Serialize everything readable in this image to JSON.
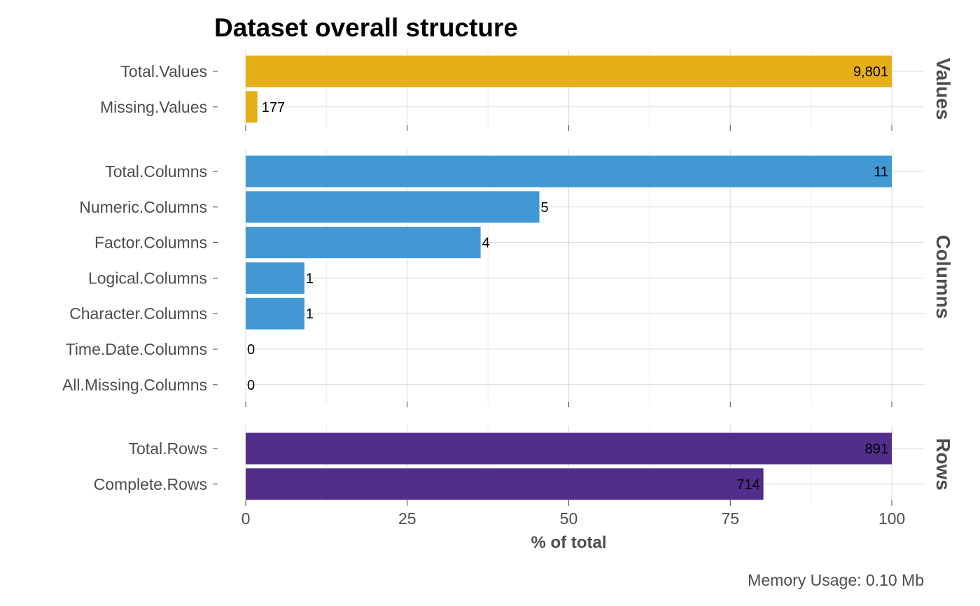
{
  "chart_data": {
    "type": "bar",
    "orientation": "horizontal",
    "title": "Dataset overall structure",
    "xlabel": "% of total",
    "ylabel": "",
    "xlim": [
      0,
      100
    ],
    "x_ticks": [
      "0",
      "25",
      "50",
      "75",
      "100"
    ],
    "grid": true,
    "legend": "none",
    "caption": "Memory Usage: 0.10 Mb",
    "panels": [
      {
        "name": "Values",
        "color": "#E6AE17",
        "categories": [
          "Total.Values",
          "Missing.Values"
        ],
        "values": [
          100,
          1.81
        ],
        "labels": [
          "9,801",
          "177"
        ]
      },
      {
        "name": "Columns",
        "color": "#4198D3",
        "categories": [
          "Total.Columns",
          "Numeric.Columns",
          "Factor.Columns",
          "Logical.Columns",
          "Character.Columns",
          "Time.Date.Columns",
          "All.Missing.Columns"
        ],
        "values": [
          100,
          45.45,
          36.36,
          9.09,
          9.09,
          0,
          0
        ],
        "labels": [
          "11",
          "5",
          "4",
          "1",
          "1",
          "0",
          "0"
        ]
      },
      {
        "name": "Rows",
        "color": "#512D8C",
        "categories": [
          "Total.Rows",
          "Complete.Rows"
        ],
        "values": [
          100,
          80.13
        ],
        "labels": [
          "891",
          "714"
        ]
      }
    ]
  }
}
